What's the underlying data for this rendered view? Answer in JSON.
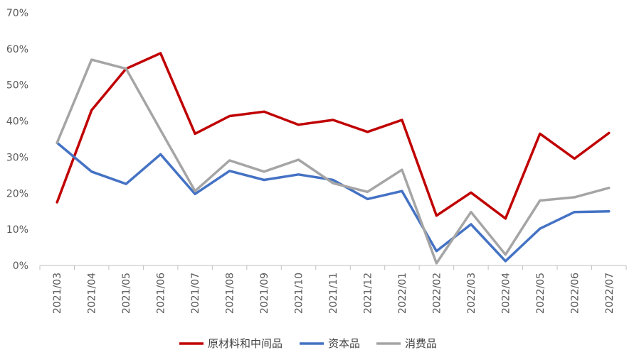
{
  "chart_data": {
    "type": "line",
    "categories": [
      "2021/03",
      "2021/04",
      "2021/05",
      "2021/06",
      "2021/07",
      "2021/08",
      "2021/09",
      "2021/10",
      "2021/11",
      "2021/12",
      "2022/01",
      "2022/02",
      "2022/03",
      "2022/04",
      "2022/05",
      "2022/06",
      "2022/07"
    ],
    "series": [
      {
        "name": "原材料和中间品",
        "color": "#C00000",
        "values": [
          17.5,
          43.0,
          54.5,
          58.8,
          36.5,
          41.4,
          42.6,
          39.0,
          40.3,
          37.0,
          40.3,
          13.8,
          20.2,
          13.0,
          36.5,
          29.6,
          36.7
        ]
      },
      {
        "name": "资本品",
        "color": "#4472C4",
        "values": [
          34.0,
          26.0,
          22.6,
          30.8,
          19.8,
          26.2,
          23.7,
          25.2,
          23.7,
          18.4,
          20.6,
          4.0,
          11.4,
          1.2,
          10.2,
          14.8,
          15.0
        ]
      },
      {
        "name": "消费品",
        "color": "#A5A5A5",
        "values": [
          34.0,
          57.0,
          54.5,
          37.5,
          20.6,
          29.1,
          26.0,
          29.3,
          22.8,
          20.4,
          26.5,
          0.6,
          14.8,
          3.0,
          18.0,
          18.9,
          21.5
        ]
      }
    ],
    "y_ticks": [
      "0%",
      "10%",
      "20%",
      "30%",
      "40%",
      "50%",
      "60%",
      "70%"
    ],
    "ylim": [
      0,
      70
    ],
    "grid": false,
    "legend_position": "bottom"
  }
}
